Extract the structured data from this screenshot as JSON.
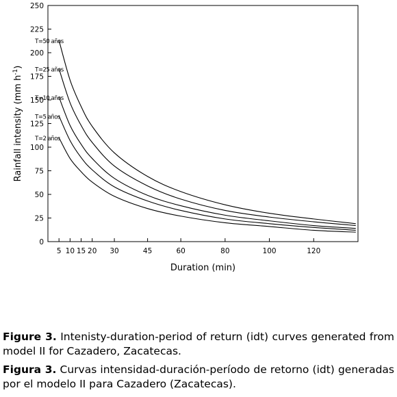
{
  "chart_data": {
    "type": "line",
    "xlabel": "Duration  (min)",
    "ylabel": "Rainfall intensity (mm h",
    "ylabel_sup": "-1",
    "ylabel_close": ")",
    "xlim": [
      0,
      140
    ],
    "ylim": [
      0,
      250
    ],
    "x_tick_values": [
      5,
      10,
      15,
      20,
      30,
      45,
      60,
      80,
      100,
      120
    ],
    "x_tick_labels": [
      "5",
      "10",
      "15",
      "20",
      "30",
      "45",
      "60",
      "80",
      "100",
      "120"
    ],
    "y_ticks": [
      0,
      25,
      50,
      75,
      100,
      125,
      150,
      175,
      200,
      225,
      250
    ],
    "grid": false,
    "legend": "none",
    "x": [
      5,
      10,
      15,
      20,
      30,
      45,
      60,
      80,
      100,
      120,
      139
    ],
    "series": [
      {
        "name": "T=50 años",
        "values": [
          213,
          171,
          143,
          122,
          94,
          69,
          53,
          39,
          30,
          24,
          19
        ]
      },
      {
        "name": "T=25 años",
        "values": [
          183,
          147,
          123,
          105,
          80,
          59,
          45,
          33,
          26,
          21,
          17
        ]
      },
      {
        "name": "T=10 años",
        "values": [
          153,
          123,
          103,
          88,
          67,
          49,
          38,
          28,
          22,
          17,
          14
        ]
      },
      {
        "name": "T=5 años",
        "values": [
          133,
          107,
          89,
          76,
          58,
          43,
          33,
          24,
          19,
          15,
          12
        ]
      },
      {
        "name": "T=2 años",
        "values": [
          110,
          88,
          74,
          63,
          48,
          35,
          27,
          20,
          16,
          12,
          10
        ]
      }
    ]
  },
  "caption": {
    "en_label": "Figure 3.",
    "en_text": " Intenisty-duration-period of return (idt) curves generated from model II for Cazadero, Zacatecas.",
    "es_label": "Figura 3.",
    "es_text": " Curvas intensidad-duración-período de retorno (idt) generadas por el modelo II para Cazadero (Zacatecas)."
  }
}
